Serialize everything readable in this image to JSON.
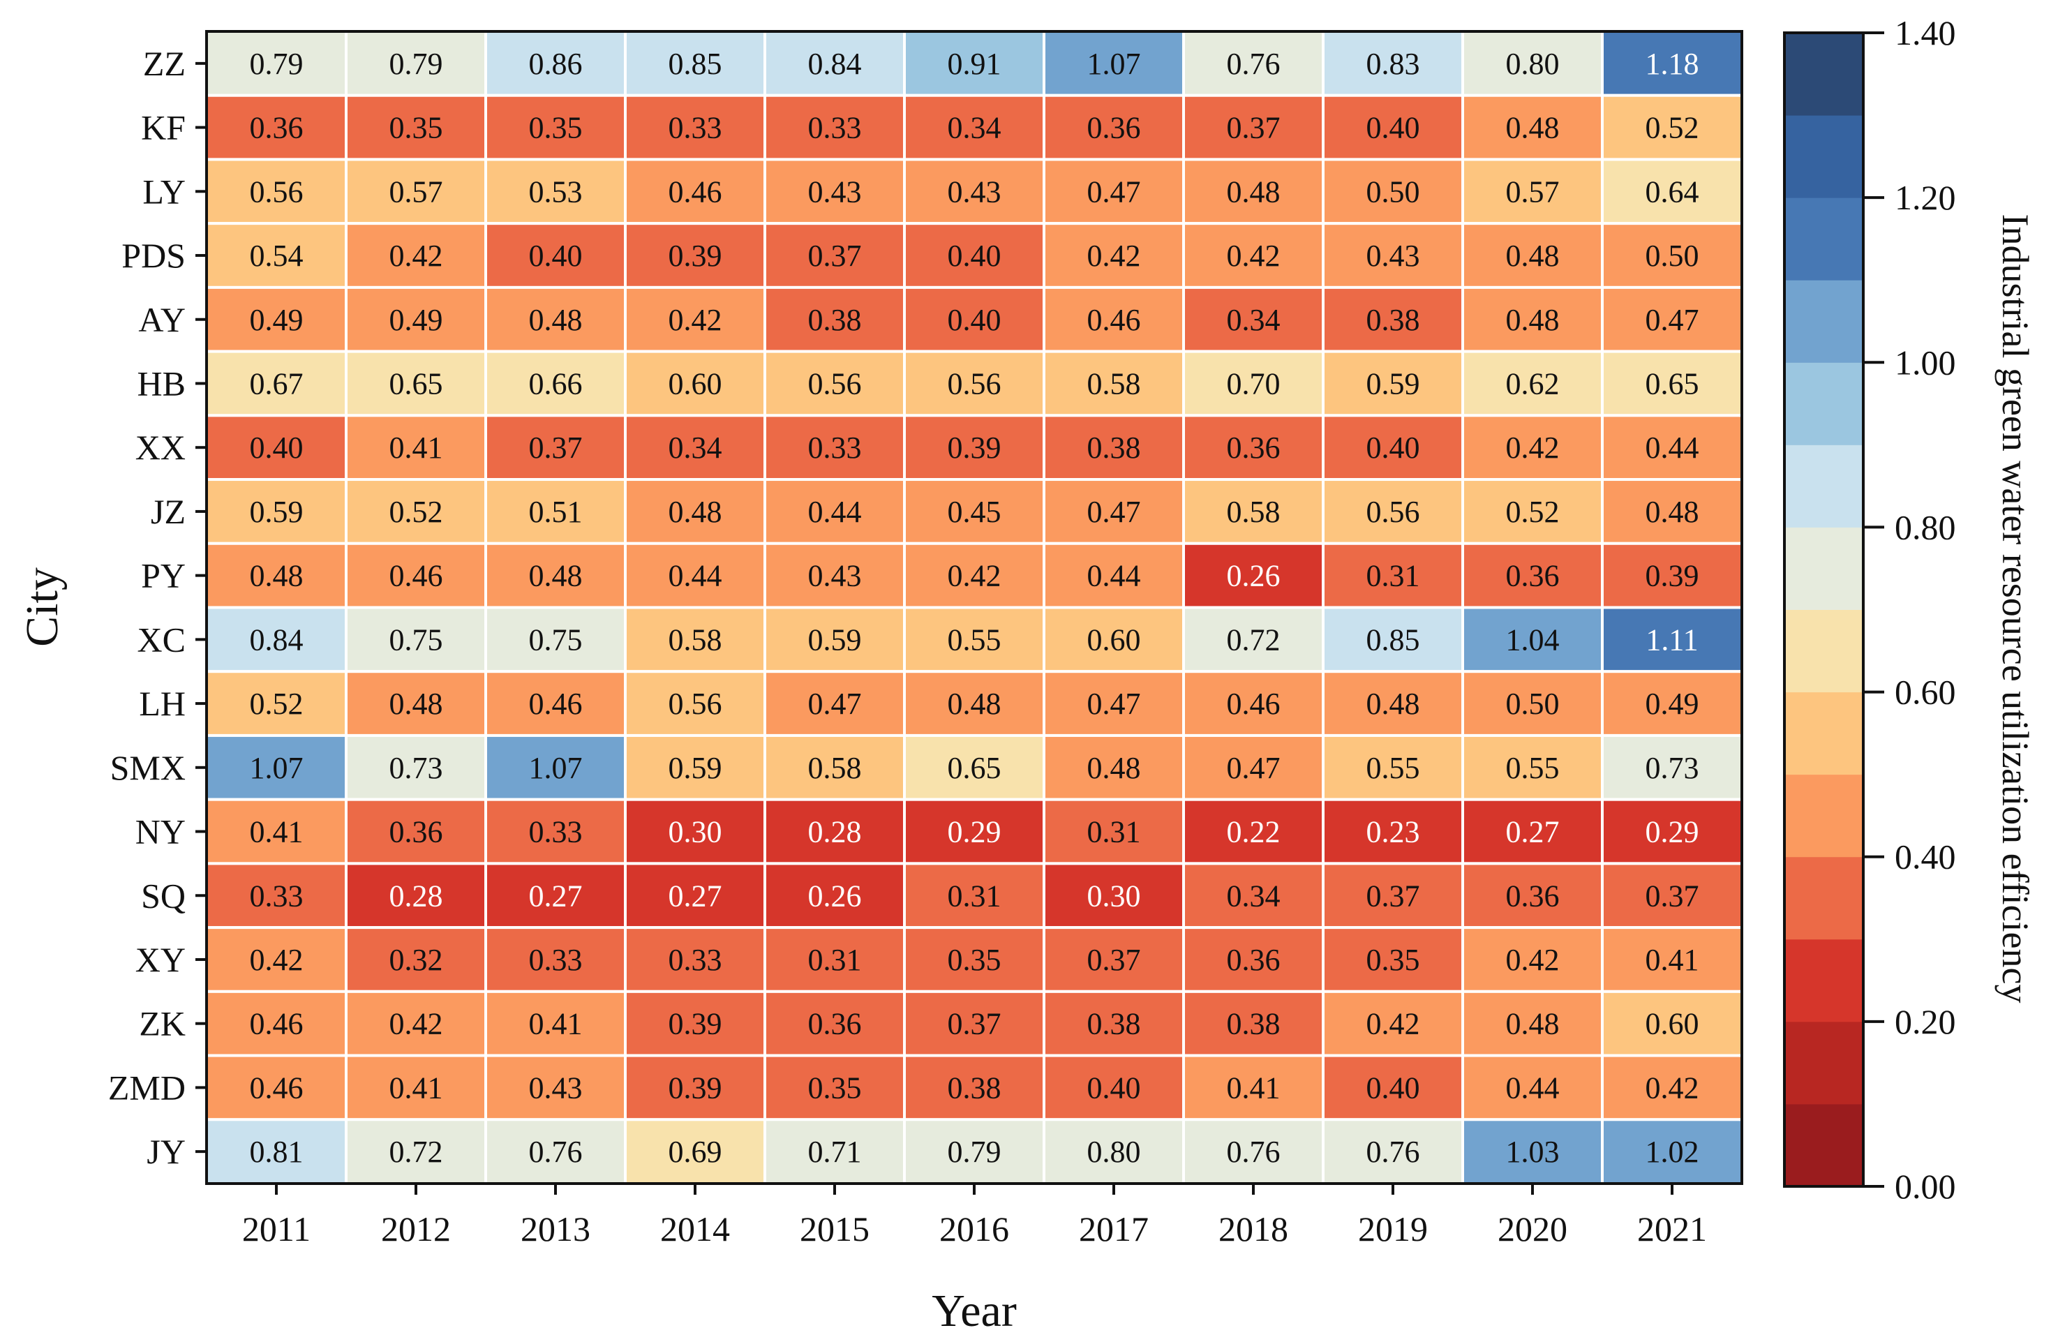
{
  "chart_data": {
    "type": "heatmap",
    "xlabel": "Year",
    "ylabel": "City",
    "x": [
      "2011",
      "2012",
      "2013",
      "2014",
      "2015",
      "2016",
      "2017",
      "2018",
      "2019",
      "2020",
      "2021"
    ],
    "y": [
      "ZZ",
      "KF",
      "LY",
      "PDS",
      "AY",
      "HB",
      "XX",
      "JZ",
      "PY",
      "XC",
      "LH",
      "SMX",
      "NY",
      "SQ",
      "XY",
      "ZK",
      "ZMD",
      "JY"
    ],
    "values": [
      [
        0.79,
        0.79,
        0.86,
        0.85,
        0.84,
        0.91,
        1.07,
        0.76,
        0.83,
        0.8,
        1.18
      ],
      [
        0.36,
        0.35,
        0.35,
        0.33,
        0.33,
        0.34,
        0.36,
        0.37,
        0.4,
        0.48,
        0.52
      ],
      [
        0.56,
        0.57,
        0.53,
        0.46,
        0.43,
        0.43,
        0.47,
        0.48,
        0.5,
        0.57,
        0.64
      ],
      [
        0.54,
        0.42,
        0.4,
        0.39,
        0.37,
        0.4,
        0.42,
        0.42,
        0.43,
        0.48,
        0.5
      ],
      [
        0.49,
        0.49,
        0.48,
        0.42,
        0.38,
        0.4,
        0.46,
        0.34,
        0.38,
        0.48,
        0.47
      ],
      [
        0.67,
        0.65,
        0.66,
        0.6,
        0.56,
        0.56,
        0.58,
        0.7,
        0.59,
        0.62,
        0.65
      ],
      [
        0.4,
        0.41,
        0.37,
        0.34,
        0.33,
        0.39,
        0.38,
        0.36,
        0.4,
        0.42,
        0.44
      ],
      [
        0.59,
        0.52,
        0.51,
        0.48,
        0.44,
        0.45,
        0.47,
        0.58,
        0.56,
        0.52,
        0.48
      ],
      [
        0.48,
        0.46,
        0.48,
        0.44,
        0.43,
        0.42,
        0.44,
        0.26,
        0.31,
        0.36,
        0.39
      ],
      [
        0.84,
        0.75,
        0.75,
        0.58,
        0.59,
        0.55,
        0.6,
        0.72,
        0.85,
        1.04,
        1.11
      ],
      [
        0.52,
        0.48,
        0.46,
        0.56,
        0.47,
        0.48,
        0.47,
        0.46,
        0.48,
        0.5,
        0.49
      ],
      [
        1.07,
        0.73,
        1.07,
        0.59,
        0.58,
        0.65,
        0.48,
        0.47,
        0.55,
        0.55,
        0.73
      ],
      [
        0.41,
        0.36,
        0.33,
        0.3,
        0.28,
        0.29,
        0.31,
        0.22,
        0.23,
        0.27,
        0.29
      ],
      [
        0.33,
        0.28,
        0.27,
        0.27,
        0.26,
        0.31,
        0.3,
        0.34,
        0.37,
        0.36,
        0.37
      ],
      [
        0.42,
        0.32,
        0.33,
        0.33,
        0.31,
        0.35,
        0.37,
        0.36,
        0.35,
        0.42,
        0.41
      ],
      [
        0.46,
        0.42,
        0.41,
        0.39,
        0.36,
        0.37,
        0.38,
        0.38,
        0.42,
        0.48,
        0.6
      ],
      [
        0.46,
        0.41,
        0.43,
        0.39,
        0.35,
        0.38,
        0.4,
        0.41,
        0.4,
        0.44,
        0.42
      ],
      [
        0.81,
        0.72,
        0.76,
        0.69,
        0.71,
        0.79,
        0.8,
        0.76,
        0.76,
        1.03,
        1.02
      ]
    ],
    "colorbar": {
      "label": "Industrial green water resource utilization efficiency",
      "range": [
        0,
        1.4
      ],
      "ticks": [
        "0.00",
        "0.20",
        "0.40",
        "0.60",
        "0.80",
        "1.00",
        "1.20",
        "1.40"
      ],
      "colors": [
        "#9a1c1e",
        "#b82722",
        "#d6362b",
        "#ec6a47",
        "#fb9a5f",
        "#fdc57f",
        "#f8e2ac",
        "#e6ebdd",
        "#c9e1ee",
        "#9bc6e0",
        "#72a3cf",
        "#4778b4",
        "#3663a0",
        "#2c4a76"
      ]
    }
  }
}
